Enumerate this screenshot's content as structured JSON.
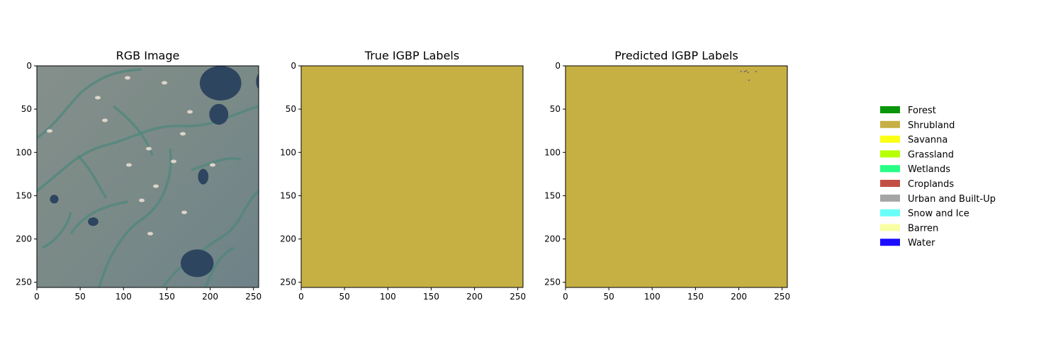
{
  "chart_data": [
    {
      "type": "heatmap",
      "title": "RGB Image",
      "content": "satellite RGB image",
      "xlim": [
        0,
        256
      ],
      "ylim": [
        256,
        0
      ],
      "xticks": [
        "0",
        "50",
        "100",
        "150",
        "200",
        "250"
      ],
      "yticks": [
        "0",
        "50",
        "100",
        "150",
        "200",
        "250"
      ],
      "lakes": [
        {
          "x": 212,
          "y": 20
        },
        {
          "x": 210,
          "y": 56
        },
        {
          "x": 192,
          "y": 128
        },
        {
          "x": 20,
          "y": 154
        },
        {
          "x": 65,
          "y": 180
        },
        {
          "x": 185,
          "y": 228
        },
        {
          "x": 265,
          "y": 18
        }
      ]
    },
    {
      "type": "heatmap",
      "title": "True IGBP Labels",
      "fill_class": "Shrubland",
      "xlim": [
        0,
        256
      ],
      "ylim": [
        256,
        0
      ],
      "xticks": [
        "0",
        "50",
        "100",
        "150",
        "200",
        "250"
      ],
      "yticks": [
        "0",
        "50",
        "100",
        "150",
        "200",
        "250"
      ]
    },
    {
      "type": "heatmap",
      "title": "Predicted IGBP Labels",
      "fill_class": "Shrubland",
      "xlim": [
        0,
        256
      ],
      "ylim": [
        256,
        0
      ],
      "xticks": [
        "0",
        "50",
        "100",
        "150",
        "200",
        "250"
      ],
      "yticks": [
        "0",
        "50",
        "100",
        "150",
        "200",
        "250"
      ],
      "water_pixels": [
        {
          "x": 202,
          "y": 6
        },
        {
          "x": 206,
          "y": 6
        },
        {
          "x": 208,
          "y": 5
        },
        {
          "x": 210,
          "y": 7
        },
        {
          "x": 219,
          "y": 6
        },
        {
          "x": 211,
          "y": 16
        }
      ]
    }
  ],
  "legend": {
    "placement": "right",
    "items": [
      {
        "label": "Forest",
        "color": "#0a960a"
      },
      {
        "label": "Shrubland",
        "color": "#c6b044"
      },
      {
        "label": "Savanna",
        "color": "#fbff13"
      },
      {
        "label": "Grassland",
        "color": "#b6ff05"
      },
      {
        "label": "Wetlands",
        "color": "#27ff87"
      },
      {
        "label": "Croplands",
        "color": "#c24f44"
      },
      {
        "label": "Urban and Built-Up",
        "color": "#a5a5a5"
      },
      {
        "label": "Snow and Ice",
        "color": "#69fff8"
      },
      {
        "label": "Barren",
        "color": "#f9ffa4"
      },
      {
        "label": "Water",
        "color": "#1c0dff"
      }
    ]
  }
}
